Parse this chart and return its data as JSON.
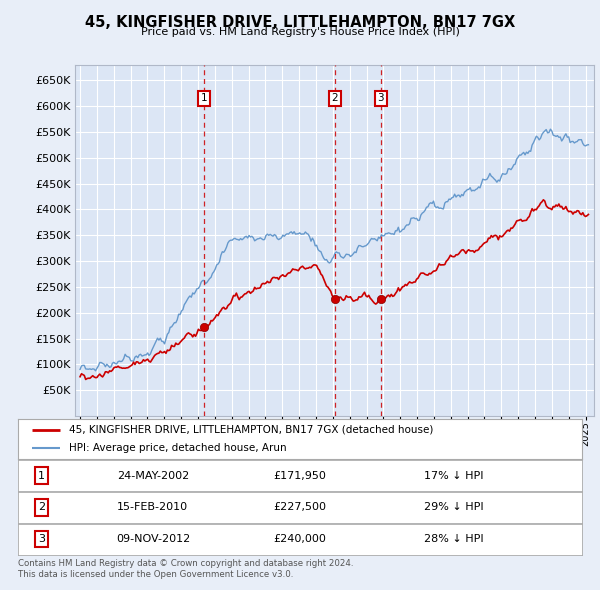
{
  "title": "45, KINGFISHER DRIVE, LITTLEHAMPTON, BN17 7GX",
  "subtitle": "Price paid vs. HM Land Registry's House Price Index (HPI)",
  "background_color": "#e8eef8",
  "plot_bg_color": "#dce6f5",
  "grid_color": "#ffffff",
  "hpi_color": "#6699cc",
  "price_color": "#cc0000",
  "transactions": [
    {
      "num": 1,
      "date": "24-MAY-2002",
      "price": 171950,
      "pct": "17%",
      "year_x": 2002.38
    },
    {
      "num": 2,
      "date": "15-FEB-2010",
      "price": 227500,
      "pct": "29%",
      "year_x": 2010.12
    },
    {
      "num": 3,
      "date": "09-NOV-2012",
      "price": 240000,
      "pct": "28%",
      "year_x": 2012.85
    }
  ],
  "legend_label_price": "45, KINGFISHER DRIVE, LITTLEHAMPTON, BN17 7GX (detached house)",
  "legend_label_hpi": "HPI: Average price, detached house, Arun",
  "footer": "Contains HM Land Registry data © Crown copyright and database right 2024.\nThis data is licensed under the Open Government Licence v3.0.",
  "ylim": [
    0,
    680000
  ],
  "yticks": [
    50000,
    100000,
    150000,
    200000,
    250000,
    300000,
    350000,
    400000,
    450000,
    500000,
    550000,
    600000,
    650000
  ],
  "xmin": 1994.7,
  "xmax": 2025.5
}
